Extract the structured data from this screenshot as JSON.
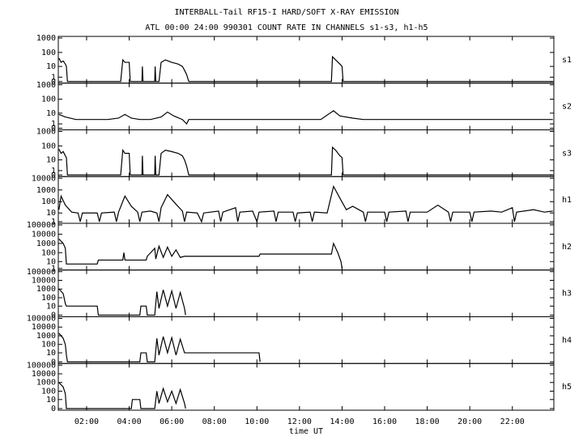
{
  "chart_data": [
    {
      "type": "line",
      "title": "INTERBALL-Tail RF15-I HARD/SOFT X-RAY EMISSION",
      "subtitle": "ATL 00:00 24:00 990301  COUNT RATE IN CHANNELS s1-s3, h1-h5",
      "yscale": "symlog",
      "xlim": [
        0.67,
        23.95
      ],
      "xticks": [
        2,
        4,
        6,
        8,
        10,
        12,
        14,
        16,
        18,
        20,
        22
      ],
      "ylim": [
        0,
        1000
      ],
      "yticks": [
        0,
        1,
        10,
        100,
        1000
      ],
      "x": [
        0.7,
        0.8,
        0.9,
        1.0,
        1.05,
        1.1,
        3.6,
        3.7,
        3.8,
        4.0,
        4.05,
        4.6,
        4.62,
        4.65,
        5.2,
        5.22,
        5.25,
        5.4,
        5.5,
        5.7,
        6.0,
        6.3,
        6.5,
        6.6,
        6.7,
        6.8,
        13.5,
        13.55,
        13.7,
        13.9,
        14.0,
        14.05,
        23.9
      ],
      "series": [
        {
          "name": "s1",
          "color": "#000000",
          "values": [
            40,
            20,
            25,
            15,
            10,
            0,
            0,
            30,
            20,
            20,
            0,
            0,
            10,
            0,
            0,
            10,
            0,
            0,
            20,
            30,
            20,
            15,
            10,
            5,
            2,
            0,
            0,
            50,
            30,
            15,
            10,
            0,
            0
          ]
        }
      ]
    },
    {
      "type": "line",
      "yscale": "symlog",
      "xlim": [
        0.67,
        23.95
      ],
      "xticks": [
        2,
        4,
        6,
        8,
        10,
        12,
        14,
        16,
        18,
        20,
        22
      ],
      "ylim": [
        0,
        1000
      ],
      "yticks": [
        0,
        1,
        10,
        100,
        1000
      ],
      "x": [
        0.7,
        1.0,
        1.5,
        2.0,
        2.5,
        3.0,
        3.5,
        3.8,
        4.1,
        4.5,
        5.0,
        5.5,
        5.8,
        6.1,
        6.5,
        6.7,
        6.8,
        7.2,
        8,
        9,
        10,
        11,
        12,
        13,
        13.6,
        13.9,
        14.5,
        15,
        16,
        17,
        18,
        19,
        20,
        21,
        22,
        23,
        23.9
      ],
      "series": [
        {
          "name": "s2",
          "color": "#000000",
          "values": [
            8,
            5,
            3,
            3,
            3,
            3,
            4,
            8,
            4,
            3,
            3,
            5,
            12,
            6,
            3,
            1,
            3,
            3,
            3,
            3,
            3,
            3,
            3,
            3,
            15,
            6,
            4,
            3,
            3,
            3,
            3,
            3,
            3,
            3,
            3,
            3,
            3
          ]
        }
      ]
    },
    {
      "type": "line",
      "yscale": "symlog",
      "xlim": [
        0.67,
        23.95
      ],
      "xticks": [
        2,
        4,
        6,
        8,
        10,
        12,
        14,
        16,
        18,
        20,
        22
      ],
      "ylim": [
        0,
        1000
      ],
      "yticks": [
        0,
        1,
        10,
        100,
        1000
      ],
      "x": [
        0.7,
        0.8,
        0.9,
        1.0,
        1.05,
        1.1,
        3.6,
        3.7,
        3.8,
        4.0,
        4.05,
        4.6,
        4.62,
        4.65,
        5.2,
        5.22,
        5.25,
        5.4,
        5.5,
        5.7,
        6.0,
        6.3,
        6.5,
        6.6,
        6.7,
        6.8,
        13.5,
        13.55,
        13.7,
        13.9,
        14.0,
        14.05,
        23.9
      ],
      "series": [
        {
          "name": "s3",
          "color": "#000000",
          "values": [
            60,
            30,
            40,
            20,
            15,
            0,
            0,
            50,
            30,
            30,
            0,
            0,
            20,
            0,
            0,
            20,
            0,
            0,
            30,
            50,
            40,
            30,
            20,
            10,
            3,
            0,
            0,
            80,
            50,
            20,
            15,
            0,
            0
          ]
        }
      ]
    },
    {
      "type": "line",
      "yscale": "symlog",
      "xlim": [
        0.67,
        23.95
      ],
      "xticks": [
        2,
        4,
        6,
        8,
        10,
        12,
        14,
        16,
        18,
        20,
        22
      ],
      "ylim": [
        1,
        10000
      ],
      "yticks": [
        1,
        10,
        100,
        1000,
        10000
      ],
      "x": [
        0.7,
        0.8,
        1.0,
        1.3,
        1.6,
        1.7,
        1.8,
        2.3,
        2.5,
        2.6,
        2.7,
        3.3,
        3.4,
        3.5,
        3.8,
        4.1,
        4.4,
        4.5,
        4.6,
        5.0,
        5.3,
        5.4,
        5.5,
        5.8,
        6.2,
        6.5,
        6.6,
        6.7,
        7.2,
        7.4,
        7.5,
        8.2,
        8.3,
        8.4,
        9.0,
        9.1,
        9.2,
        9.8,
        10.0,
        10.1,
        10.8,
        10.9,
        11.0,
        11.7,
        11.8,
        11.9,
        12.5,
        12.6,
        12.7,
        13.3,
        13.6,
        13.9,
        14.2,
        14.5,
        15.0,
        15.1,
        15.2,
        16.0,
        16.1,
        16.2,
        17.0,
        17.1,
        17.2,
        18.0,
        18.5,
        19.0,
        19.1,
        19.2,
        20.0,
        20.1,
        20.2,
        21.0,
        21.5,
        22.0,
        22.1,
        22.2,
        23.0,
        23.5,
        23.9
      ],
      "series": [
        {
          "name": "h1",
          "color": "#000000",
          "values": [
            20,
            300,
            50,
            12,
            10,
            1,
            10,
            10,
            10,
            1,
            10,
            12,
            1,
            12,
            300,
            40,
            12,
            1,
            12,
            15,
            10,
            1,
            30,
            400,
            60,
            15,
            1,
            12,
            10,
            1,
            10,
            15,
            1,
            12,
            30,
            1,
            12,
            15,
            1,
            12,
            15,
            1,
            12,
            12,
            1,
            10,
            12,
            1,
            12,
            10,
            2000,
            200,
            20,
            40,
            12,
            1,
            12,
            12,
            1,
            12,
            15,
            1,
            12,
            12,
            50,
            12,
            1,
            12,
            12,
            1,
            12,
            15,
            12,
            30,
            1,
            12,
            20,
            12,
            15
          ]
        }
      ]
    },
    {
      "type": "line",
      "yscale": "symlog",
      "xlim": [
        0.67,
        23.95
      ],
      "xticks": [
        2,
        4,
        6,
        8,
        10,
        12,
        14,
        16,
        18,
        20,
        22
      ],
      "ylim": [
        1,
        100000
      ],
      "yticks": [
        1,
        10,
        100,
        1000,
        10000,
        100000
      ],
      "x": [
        0.7,
        0.9,
        1.0,
        1.05,
        2.5,
        2.55,
        3.7,
        3.75,
        3.8,
        3.85,
        4.8,
        4.85,
        5.2,
        5.25,
        5.4,
        5.6,
        5.8,
        6.0,
        6.2,
        6.4,
        6.6,
        10.1,
        10.15,
        13.5,
        13.6,
        13.8,
        13.95,
        14.0
      ],
      "series": [
        {
          "name": "h2",
          "color": "#000000",
          "values": [
            3000,
            1000,
            300,
            5,
            5,
            15,
            15,
            100,
            15,
            15,
            15,
            40,
            300,
            20,
            500,
            30,
            400,
            40,
            200,
            30,
            40,
            40,
            70,
            70,
            1000,
            100,
            10,
            1
          ]
        }
      ]
    },
    {
      "type": "line",
      "yscale": "symlog",
      "xlim": [
        0.67,
        23.95
      ],
      "xticks": [
        2,
        4,
        6,
        8,
        10,
        12,
        14,
        16,
        18,
        20,
        22
      ],
      "ylim": [
        0,
        100000
      ],
      "yticks": [
        0,
        10,
        100,
        1000,
        10000,
        100000
      ],
      "x": [
        0.7,
        0.9,
        1.0,
        1.05,
        2.5,
        2.55,
        4.5,
        4.55,
        4.8,
        4.85,
        5.2,
        5.3,
        5.4,
        5.6,
        5.8,
        6.0,
        6.2,
        6.4,
        6.6,
        6.65
      ],
      "series": [
        {
          "name": "h3",
          "color": "#000000",
          "values": [
            1000,
            300,
            20,
            10,
            10,
            0,
            0,
            10,
            10,
            0,
            0,
            500,
            5,
            800,
            10,
            600,
            5,
            400,
            5,
            0
          ]
        }
      ]
    },
    {
      "type": "line",
      "yscale": "symlog",
      "xlim": [
        0.67,
        23.95
      ],
      "xticks": [
        2,
        4,
        6,
        8,
        10,
        12,
        14,
        16,
        18,
        20,
        22
      ],
      "ylim": [
        0,
        100000
      ],
      "yticks": [
        0,
        10,
        100,
        1000,
        10000,
        100000
      ],
      "x": [
        0.7,
        0.9,
        1.0,
        1.05,
        1.1,
        4.5,
        4.55,
        4.8,
        4.85,
        5.2,
        5.3,
        5.4,
        5.6,
        5.8,
        6.0,
        6.2,
        6.4,
        6.6,
        6.65,
        10.1,
        10.15
      ],
      "series": [
        {
          "name": "h4",
          "color": "#000000",
          "values": [
            2000,
            500,
            100,
            5,
            0,
            0,
            10,
            10,
            0,
            0,
            500,
            5,
            800,
            10,
            600,
            5,
            400,
            10,
            10,
            10,
            0
          ]
        }
      ]
    },
    {
      "type": "line",
      "yscale": "symlog",
      "xlabel": "time UT",
      "xlim": [
        0.67,
        23.95
      ],
      "xticks": [
        {
          "value": 2,
          "label": "02:00"
        },
        {
          "value": 4,
          "label": "04:00"
        },
        {
          "value": 6,
          "label": "06:00"
        },
        {
          "value": 8,
          "label": "08:00"
        },
        {
          "value": 10,
          "label": "10:00"
        },
        {
          "value": 12,
          "label": "12:00"
        },
        {
          "value": 14,
          "label": "14:00"
        },
        {
          "value": 16,
          "label": "16:00"
        },
        {
          "value": 18,
          "label": "18:00"
        },
        {
          "value": 20,
          "label": "20:00"
        },
        {
          "value": 22,
          "label": "22:00"
        }
      ],
      "ylim": [
        0,
        100000
      ],
      "yticks": [
        0,
        10,
        100,
        1000,
        10000,
        100000
      ],
      "x": [
        0.7,
        0.9,
        1.0,
        1.05,
        4.1,
        4.15,
        4.5,
        4.55,
        5.2,
        5.3,
        5.4,
        5.6,
        5.8,
        6.0,
        6.2,
        6.4,
        6.6,
        6.65
      ],
      "series": [
        {
          "name": "h5",
          "color": "#000000",
          "values": [
            1000,
            300,
            50,
            0,
            0,
            10,
            10,
            0,
            0,
            100,
            3,
            200,
            5,
            100,
            3,
            150,
            3,
            0
          ]
        }
      ]
    }
  ]
}
